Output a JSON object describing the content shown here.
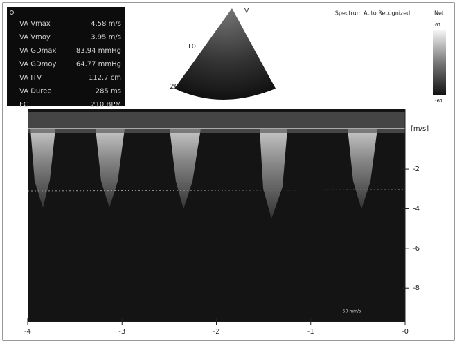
{
  "measurements": [
    {
      "label": "VA Vmax",
      "value": "4.58 m/s"
    },
    {
      "label": "VA Vmoy",
      "value": "3.95 m/s"
    },
    {
      "label": "VA GDmax",
      "value": "83.94 mmHg"
    },
    {
      "label": "VA GDmoy",
      "value": "64.77 mmHg"
    },
    {
      "label": "VA ITV",
      "value": "112.7 cm"
    },
    {
      "label": "VA Duree",
      "value": "285 ms"
    },
    {
      "label": "FC",
      "value": "210 BPM"
    }
  ],
  "sector": {
    "depth_labels": [
      "10",
      "20"
    ]
  },
  "header": {
    "status": "Spectrum Auto Recognized",
    "colorbar_title": "Net",
    "colorbar_max": "61",
    "colorbar_min": "-61"
  },
  "velocity_axis": {
    "unit": "[m/s]",
    "range": [
      1,
      -9.7
    ],
    "ticks": [
      -2,
      -4,
      -6,
      -8
    ]
  },
  "time_axis": {
    "range": [
      -4,
      0
    ],
    "ticks": [
      -4,
      -3,
      -2,
      -1,
      {
        "value": 0,
        "label": "-0"
      }
    ],
    "sweep": "50 mm/s"
  }
}
